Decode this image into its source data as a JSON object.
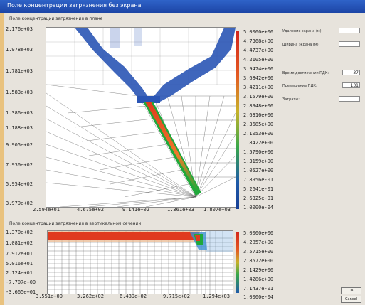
{
  "window": {
    "title": "Поле концентрации загрязнения без экрана"
  },
  "top_panel": {
    "title": "Поле концентрации загрязнения в плане",
    "y_ticks": [
      "2.176e+03",
      "1.978e+03",
      "1.781e+03",
      "1.583e+03",
      "1.386e+03",
      "1.188e+03",
      "9.905e+02",
      "7.930e+02",
      "5.954e+02",
      "3.979e+02"
    ],
    "x_ticks": [
      "2.594e+01",
      "4.675e+02",
      "9.141e+02",
      "1.361e+03",
      "1.807e+03"
    ],
    "legend": [
      "5.0000e+00",
      "4.7368e+00",
      "4.4737e+00",
      "4.2105e+00",
      "3.9474e+00",
      "3.6842e+00",
      "3.4211e+00",
      "3.1579e+00",
      "2.8948e+00",
      "2.6316e+00",
      "2.3685e+00",
      "2.1053e+00",
      "1.8422e+00",
      "1.5790e+00",
      "1.3159e+00",
      "1.0527e+00",
      "7.8956e-01",
      "5.2641e-01",
      "2.6325e-01",
      "1.0000e-04"
    ]
  },
  "bottom_panel": {
    "title": "Поле концентрации загрязнения в вертикальном сечении",
    "y_ticks": [
      "1.370e+02",
      "1.081e+02",
      "7.912e+01",
      "5.016e+01",
      "2.124e+01",
      "-7.707e+00",
      "-3.665e+01"
    ],
    "x_ticks": [
      "3.551e+00",
      "3.262e+02",
      "6.489e+02",
      "9.715e+02",
      "1.294e+03"
    ],
    "legend": [
      "5.0000e+00",
      "4.2857e+00",
      "3.5715e+00",
      "2.8572e+00",
      "2.1429e+00",
      "1.4286e+00",
      "7.1437e-01",
      "1.0000e-04"
    ]
  },
  "side_panel": {
    "fields": [
      {
        "label": "Удаление экрана (м):",
        "value": ""
      },
      {
        "label": "Ширина экрана (м):",
        "value": ""
      },
      {
        "label": "Время достижения ПДК:",
        "value": "37"
      },
      {
        "label": "Превышение ПДК:",
        "value": "131"
      },
      {
        "label": "Затраты:",
        "value": ""
      }
    ],
    "ok_label": "OK",
    "cancel_label": "Cancel"
  },
  "colors": {
    "plume_high": "#e03a1f",
    "plume_mid": "#1fa83a",
    "plume_low": "#1e4aa8",
    "background": "#e7e3dc"
  }
}
